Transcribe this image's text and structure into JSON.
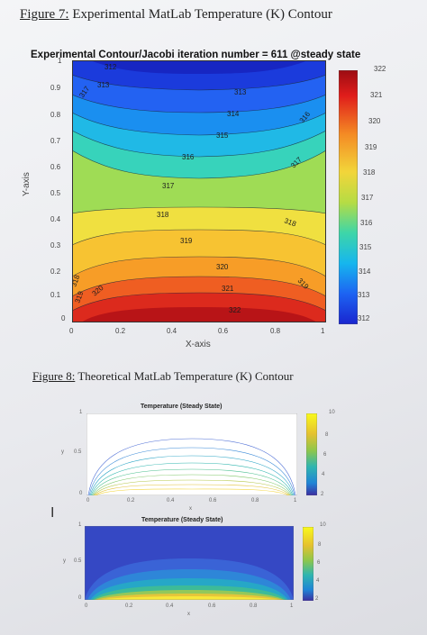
{
  "figure7": {
    "caption_label": "Figure 7:",
    "caption_text": " Experimental MatLab Temperature (K) Contour",
    "plot_title": "Experimental Contour/Jacobi iteration number = 611 @steady state",
    "xlabel": "X-axis",
    "ylabel": "Y-axis",
    "yticks": [
      "1",
      "0.9",
      "0.8",
      "0.7",
      "0.6",
      "0.5",
      "0.4",
      "0.3",
      "0.2",
      "0.1",
      "0"
    ],
    "xticks": [
      "0",
      "0.2",
      "0.4",
      "0.6",
      "0.8",
      "1"
    ],
    "colorbar_ticks": [
      "322",
      "321",
      "320",
      "319",
      "318",
      "317",
      "316",
      "315",
      "314",
      "313",
      "312"
    ],
    "contour_labels": [
      "312",
      "313",
      "314",
      "315",
      "316",
      "317",
      "318",
      "319",
      "320",
      "321",
      "322",
      "316",
      "316",
      "317",
      "318",
      "319"
    ]
  },
  "figure8": {
    "caption_label": "Figure 8:",
    "caption_text": " Theoretical MatLab Temperature (K) Contour",
    "plot1_title": "Temperature (Steady State)",
    "plot2_title": "Temperature (Steady State)",
    "plot1_yticks": [
      "1",
      "0.5",
      "0"
    ],
    "plot1_xticks": [
      "0",
      "0.2",
      "0.4",
      "0.6",
      "0.8",
      "1"
    ],
    "plot1_colorbar_ticks": [
      "10",
      "8",
      "6",
      "4",
      "2"
    ],
    "plot2_yticks": [
      "1",
      "0.5",
      "0"
    ],
    "plot2_xticks": [
      "0",
      "0.2",
      "0.4",
      "0.6",
      "0.8",
      "1"
    ],
    "plot2_colorbar_ticks": [
      "10",
      "8",
      "6",
      "4",
      "2"
    ],
    "xlabel": "x",
    "ylabel": "y"
  },
  "cursor_icon": "text-cursor-icon",
  "chart_data": [
    {
      "type": "heatmap",
      "title": "Experimental Contour/Jacobi iteration number = 611 @steady state",
      "xlabel": "X-axis",
      "ylabel": "Y-axis",
      "xlim": [
        0,
        1
      ],
      "ylim": [
        0,
        1
      ],
      "colorbar_range": [
        312,
        322
      ],
      "contour_levels": [
        312,
        313,
        314,
        315,
        316,
        317,
        318,
        319,
        320,
        321,
        322
      ]
    },
    {
      "type": "line",
      "title": "Temperature (Steady State)",
      "xlim": [
        0,
        1
      ],
      "ylim": [
        0,
        1
      ],
      "colorbar_range": [
        2,
        10
      ]
    },
    {
      "type": "heatmap",
      "title": "Temperature (Steady State)",
      "xlim": [
        0,
        1
      ],
      "ylim": [
        0,
        1
      ],
      "colorbar_range": [
        2,
        10
      ]
    }
  ]
}
